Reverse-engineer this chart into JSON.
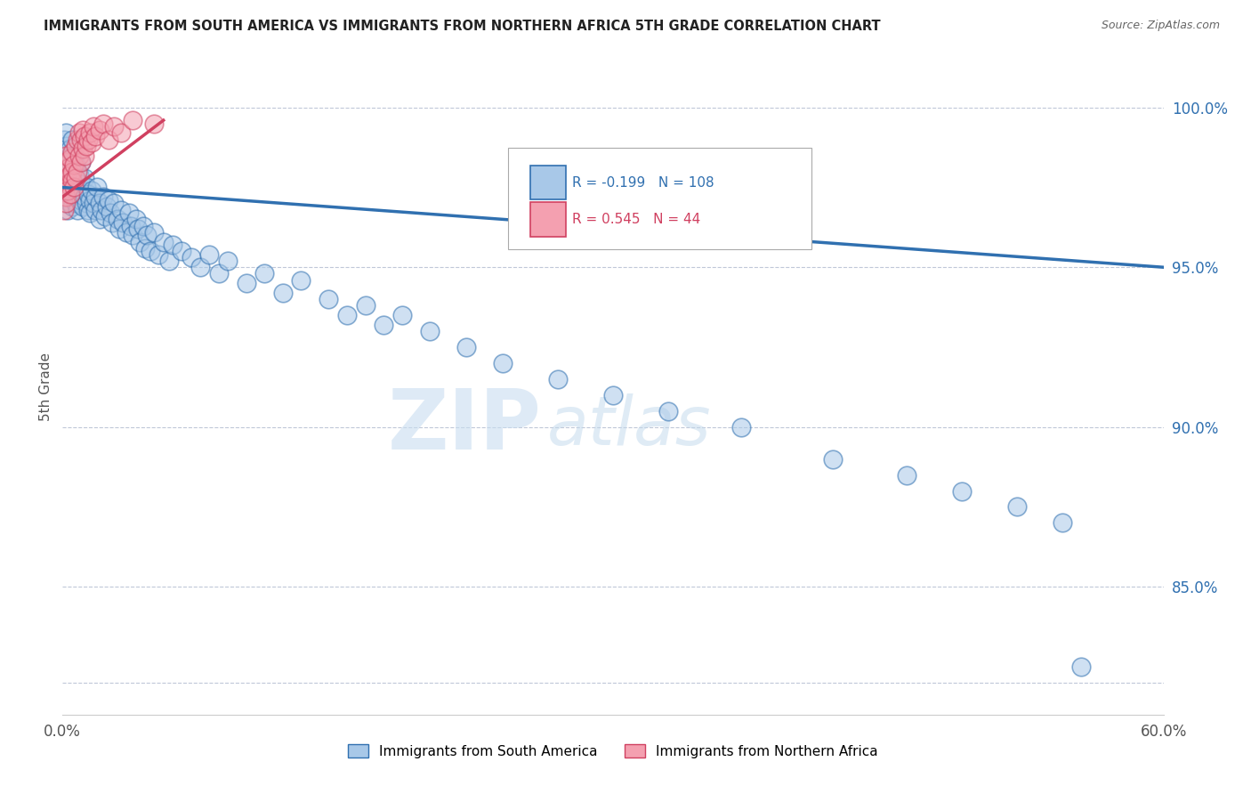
{
  "title": "IMMIGRANTS FROM SOUTH AMERICA VS IMMIGRANTS FROM NORTHERN AFRICA 5TH GRADE CORRELATION CHART",
  "source": "Source: ZipAtlas.com",
  "ylabel": "5th Grade",
  "xlim": [
    0.0,
    0.6
  ],
  "ylim": [
    81.0,
    101.5
  ],
  "legend_blue_label": "Immigrants from South America",
  "legend_pink_label": "Immigrants from Northern Africa",
  "blue_R": -0.199,
  "blue_N": 108,
  "pink_R": 0.545,
  "pink_N": 44,
  "blue_color": "#a8c8e8",
  "pink_color": "#f4a0b0",
  "blue_line_color": "#3070b0",
  "pink_line_color": "#d04060",
  "watermark_zip": "ZIP",
  "watermark_atlas": "atlas",
  "yticks": [
    82.0,
    85.0,
    90.0,
    95.0,
    100.0
  ],
  "ytick_labels": [
    "",
    "85.0%",
    "90.0%",
    "95.0%",
    "100.0%"
  ],
  "blue_trend_x": [
    0.0,
    0.6
  ],
  "blue_trend_y": [
    97.5,
    95.0
  ],
  "pink_trend_x": [
    0.0,
    0.055
  ],
  "pink_trend_y": [
    97.2,
    99.6
  ],
  "blue_scatter_x": [
    0.001,
    0.001,
    0.001,
    0.001,
    0.002,
    0.002,
    0.002,
    0.002,
    0.002,
    0.003,
    0.003,
    0.003,
    0.003,
    0.004,
    0.004,
    0.004,
    0.004,
    0.005,
    0.005,
    0.005,
    0.005,
    0.006,
    0.006,
    0.006,
    0.007,
    0.007,
    0.007,
    0.008,
    0.008,
    0.008,
    0.009,
    0.009,
    0.01,
    0.01,
    0.01,
    0.011,
    0.011,
    0.012,
    0.012,
    0.013,
    0.013,
    0.014,
    0.014,
    0.015,
    0.015,
    0.016,
    0.017,
    0.018,
    0.018,
    0.019,
    0.02,
    0.02,
    0.021,
    0.022,
    0.023,
    0.024,
    0.025,
    0.026,
    0.027,
    0.028,
    0.03,
    0.031,
    0.032,
    0.033,
    0.035,
    0.036,
    0.037,
    0.038,
    0.04,
    0.041,
    0.042,
    0.044,
    0.045,
    0.046,
    0.048,
    0.05,
    0.052,
    0.055,
    0.058,
    0.06,
    0.065,
    0.07,
    0.075,
    0.08,
    0.085,
    0.09,
    0.1,
    0.11,
    0.12,
    0.13,
    0.145,
    0.155,
    0.165,
    0.175,
    0.185,
    0.2,
    0.22,
    0.24,
    0.27,
    0.3,
    0.33,
    0.37,
    0.42,
    0.46,
    0.49,
    0.52,
    0.545,
    0.555
  ],
  "blue_scatter_y": [
    98.5,
    97.8,
    99.0,
    97.3,
    98.2,
    97.5,
    98.8,
    97.1,
    99.2,
    97.9,
    98.4,
    97.6,
    96.8,
    98.1,
    97.4,
    98.7,
    97.0,
    98.3,
    97.7,
    99.0,
    96.9,
    97.8,
    98.5,
    97.2,
    97.6,
    98.2,
    97.0,
    97.5,
    98.0,
    96.8,
    97.3,
    97.9,
    97.1,
    97.6,
    98.3,
    96.9,
    97.4,
    97.2,
    97.8,
    97.0,
    97.5,
    96.8,
    97.3,
    97.1,
    96.7,
    97.4,
    97.0,
    96.8,
    97.2,
    97.5,
    97.0,
    96.5,
    96.8,
    97.2,
    96.6,
    96.9,
    97.1,
    96.7,
    96.4,
    97.0,
    96.5,
    96.2,
    96.8,
    96.4,
    96.1,
    96.7,
    96.3,
    96.0,
    96.5,
    96.2,
    95.8,
    96.3,
    95.6,
    96.0,
    95.5,
    96.1,
    95.4,
    95.8,
    95.2,
    95.7,
    95.5,
    95.3,
    95.0,
    95.4,
    94.8,
    95.2,
    94.5,
    94.8,
    94.2,
    94.6,
    94.0,
    93.5,
    93.8,
    93.2,
    93.5,
    93.0,
    92.5,
    92.0,
    91.5,
    91.0,
    90.5,
    90.0,
    89.0,
    88.5,
    88.0,
    87.5,
    87.0,
    82.5
  ],
  "pink_scatter_x": [
    0.001,
    0.001,
    0.001,
    0.001,
    0.002,
    0.002,
    0.002,
    0.002,
    0.003,
    0.003,
    0.003,
    0.004,
    0.004,
    0.004,
    0.005,
    0.005,
    0.005,
    0.006,
    0.006,
    0.007,
    0.007,
    0.008,
    0.008,
    0.009,
    0.009,
    0.01,
    0.01,
    0.011,
    0.011,
    0.012,
    0.012,
    0.013,
    0.014,
    0.015,
    0.016,
    0.017,
    0.018,
    0.02,
    0.022,
    0.025,
    0.028,
    0.032,
    0.038,
    0.05
  ],
  "pink_scatter_y": [
    97.5,
    98.0,
    96.8,
    97.8,
    97.2,
    98.3,
    97.0,
    98.5,
    97.6,
    98.1,
    97.4,
    97.9,
    98.4,
    97.3,
    98.0,
    97.7,
    98.6,
    97.5,
    98.2,
    97.8,
    98.8,
    98.0,
    99.0,
    98.5,
    99.2,
    98.3,
    99.0,
    98.7,
    99.3,
    98.5,
    99.1,
    98.8,
    99.0,
    99.2,
    98.9,
    99.4,
    99.1,
    99.3,
    99.5,
    99.0,
    99.4,
    99.2,
    99.6,
    99.5
  ]
}
